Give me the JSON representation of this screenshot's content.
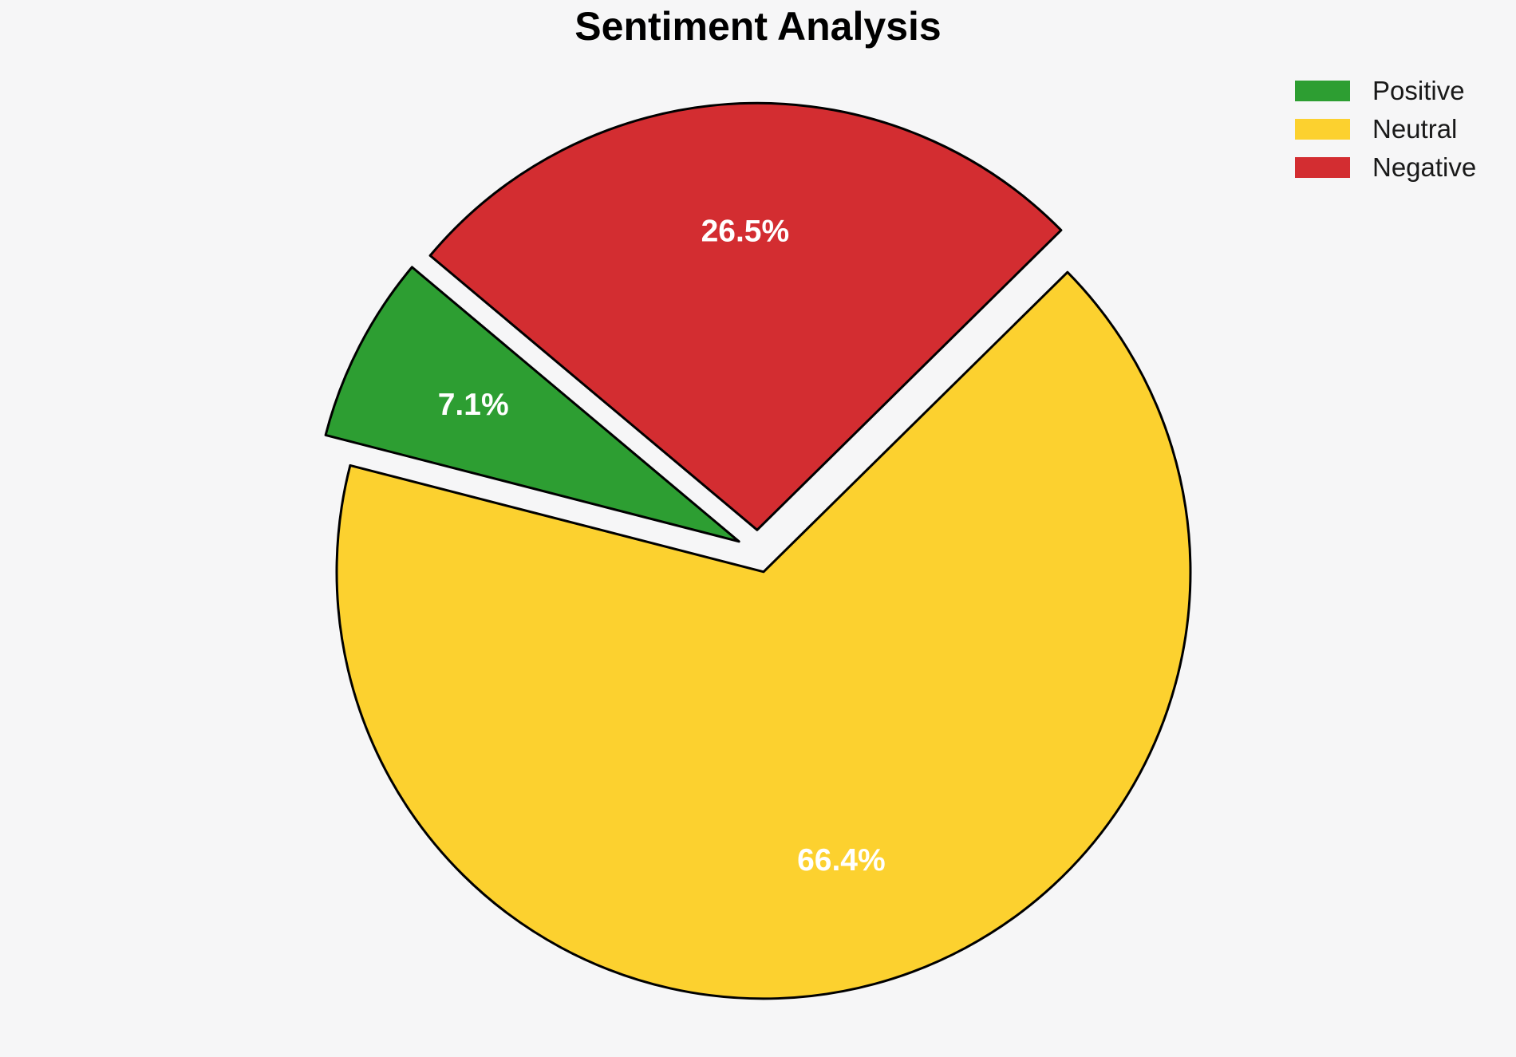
{
  "chart_data": {
    "type": "pie",
    "title": "Sentiment Analysis",
    "slices": [
      {
        "label": "Positive",
        "value": 7.1,
        "pct_label": "7.1%",
        "color": "#2d9e32"
      },
      {
        "label": "Neutral",
        "value": 66.4,
        "pct_label": "66.4%",
        "color": "#fcd12f"
      },
      {
        "label": "Negative",
        "value": 26.5,
        "pct_label": "26.5%",
        "color": "#d32d31"
      }
    ],
    "start_angle": 140,
    "counterclock": true,
    "explode": 0.05,
    "pct_distance": 0.7,
    "edge_color": "#000000",
    "pct_text_color": "#ffffff",
    "background_color": "#f6f6f7",
    "legend_position": "upper right",
    "legend_labels": [
      "Positive",
      "Neutral",
      "Negative"
    ]
  }
}
